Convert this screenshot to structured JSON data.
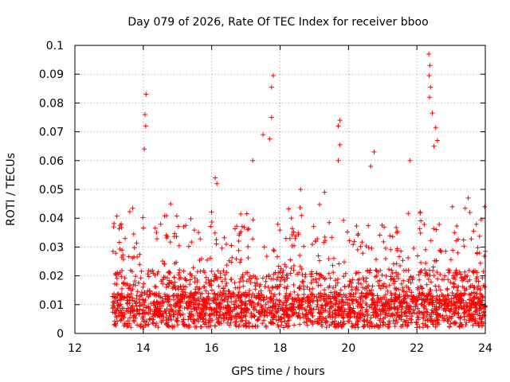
{
  "chart_data": {
    "type": "scatter",
    "title": "Day 079 of 2026, Rate Of TEC Index for receiver bboo",
    "xlabel": "GPS time / hours",
    "ylabel": "ROTI / TECUs",
    "xlim": [
      12,
      24
    ],
    "ylim": [
      0,
      0.1
    ],
    "x_ticks": [
      "12",
      "14",
      "16",
      "18",
      "20",
      "22",
      "24"
    ],
    "y_ticks": [
      "0",
      "0.01",
      "0.02",
      "0.03",
      "0.04",
      "0.05",
      "0.06",
      "0.07",
      "0.08",
      "0.09",
      "0.1"
    ],
    "grid": true,
    "marker": "+",
    "color": "#ff0000",
    "series": [
      {
        "name": "ROTI",
        "x_range": [
          13.1,
          24.0
        ],
        "typical_range": [
          0.002,
          0.03
        ],
        "notable_points": [
          {
            "x": 14.08,
            "y": 0.083
          },
          {
            "x": 14.05,
            "y": 0.076
          },
          {
            "x": 14.07,
            "y": 0.072
          },
          {
            "x": 14.03,
            "y": 0.064
          },
          {
            "x": 14.8,
            "y": 0.045
          },
          {
            "x": 16.1,
            "y": 0.054
          },
          {
            "x": 16.15,
            "y": 0.052
          },
          {
            "x": 17.2,
            "y": 0.06
          },
          {
            "x": 17.5,
            "y": 0.069
          },
          {
            "x": 17.75,
            "y": 0.075
          },
          {
            "x": 17.8,
            "y": 0.0895
          },
          {
            "x": 17.75,
            "y": 0.0855
          },
          {
            "x": 17.7,
            "y": 0.0675
          },
          {
            "x": 18.6,
            "y": 0.05
          },
          {
            "x": 19.3,
            "y": 0.049
          },
          {
            "x": 19.75,
            "y": 0.074
          },
          {
            "x": 19.7,
            "y": 0.072
          },
          {
            "x": 19.75,
            "y": 0.0655
          },
          {
            "x": 19.7,
            "y": 0.06
          },
          {
            "x": 20.75,
            "y": 0.063
          },
          {
            "x": 20.65,
            "y": 0.058
          },
          {
            "x": 21.8,
            "y": 0.06
          },
          {
            "x": 22.35,
            "y": 0.097
          },
          {
            "x": 22.38,
            "y": 0.093
          },
          {
            "x": 22.36,
            "y": 0.0895
          },
          {
            "x": 22.4,
            "y": 0.0855
          },
          {
            "x": 22.37,
            "y": 0.082
          },
          {
            "x": 22.45,
            "y": 0.0765
          },
          {
            "x": 22.55,
            "y": 0.0715
          },
          {
            "x": 22.6,
            "y": 0.067
          },
          {
            "x": 22.5,
            "y": 0.065
          },
          {
            "x": 23.5,
            "y": 0.047
          },
          {
            "x": 23.55,
            "y": 0.042
          }
        ]
      }
    ]
  }
}
